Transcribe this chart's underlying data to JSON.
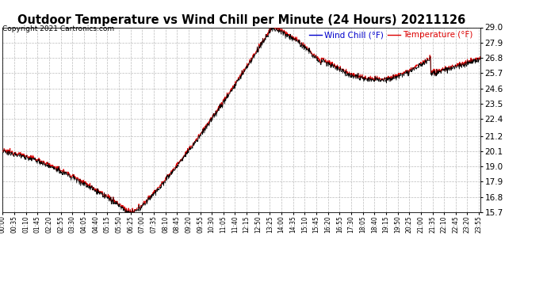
{
  "title": "Outdoor Temperature vs Wind Chill per Minute (24 Hours) 20211126",
  "copyright": "Copyright 2021 Cartronics.com",
  "legend_wind_chill": "Wind Chill (°F)",
  "legend_temperature": "Temperature (°F)",
  "ymin": 15.7,
  "ymax": 29.0,
  "yticks": [
    15.7,
    16.8,
    17.9,
    19.0,
    20.1,
    21.2,
    22.4,
    23.5,
    24.6,
    25.7,
    26.8,
    27.9,
    29.0
  ],
  "bg_color": "#ffffff",
  "grid_color": "#bbbbbb",
  "line_color_temp": "#dd0000",
  "line_color_wc": "#000000",
  "title_color": "#000000",
  "copyright_color": "#000000",
  "wc_legend_color": "#0000cc",
  "temp_legend_color": "#dd0000"
}
